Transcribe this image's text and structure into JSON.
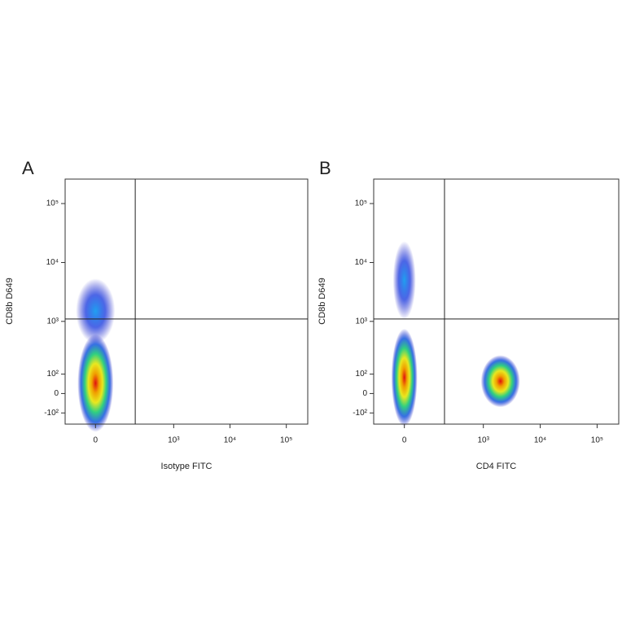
{
  "chart_data": [
    {
      "type": "density",
      "panel": "A",
      "xlabel": "Isotype FITC",
      "ylabel": "CD8b D649",
      "xlim": [
        -130,
        240000
      ],
      "ylim": [
        -180,
        260000
      ],
      "xticks": [
        0,
        {
          "value": 1000,
          "label": "10³"
        },
        {
          "value": 10000,
          "label": "10⁴"
        },
        {
          "value": 100000,
          "label": "10⁵"
        }
      ],
      "yticks": [
        {
          "value": -100,
          "label": "-10²"
        },
        0,
        {
          "value": 100,
          "label": "10²"
        },
        {
          "value": 1000,
          "label": "10³"
        },
        {
          "value": 10000,
          "label": "10⁴"
        },
        {
          "value": 100000,
          "label": "10⁵"
        }
      ],
      "gate": {
        "x": 200,
        "y": 1100
      },
      "populations": [
        {
          "x": 0,
          "y": 50
        },
        {
          "x": 0,
          "y": 1500
        }
      ]
    },
    {
      "type": "density",
      "panel": "B",
      "xlabel": "CD4 FITC",
      "ylabel": "CD8b D649",
      "xlim": [
        -130,
        240000
      ],
      "ylim": [
        -180,
        260000
      ],
      "xticks": [
        0,
        {
          "value": 1000,
          "label": "10³"
        },
        {
          "value": 10000,
          "label": "10⁴"
        },
        {
          "value": 100000,
          "label": "10⁵"
        }
      ],
      "yticks": [
        {
          "value": -100,
          "label": "-10²"
        },
        0,
        {
          "value": 100,
          "label": "10²"
        },
        {
          "value": 1000,
          "label": "10³"
        },
        {
          "value": 10000,
          "label": "10⁴"
        },
        {
          "value": 100000,
          "label": "10⁵"
        }
      ],
      "gate": {
        "x": 200,
        "y": 1100
      },
      "populations": [
        {
          "x": 0,
          "y": 80
        },
        {
          "x": 0,
          "y": 5000
        },
        {
          "x": 2000,
          "y": 60
        }
      ]
    }
  ]
}
